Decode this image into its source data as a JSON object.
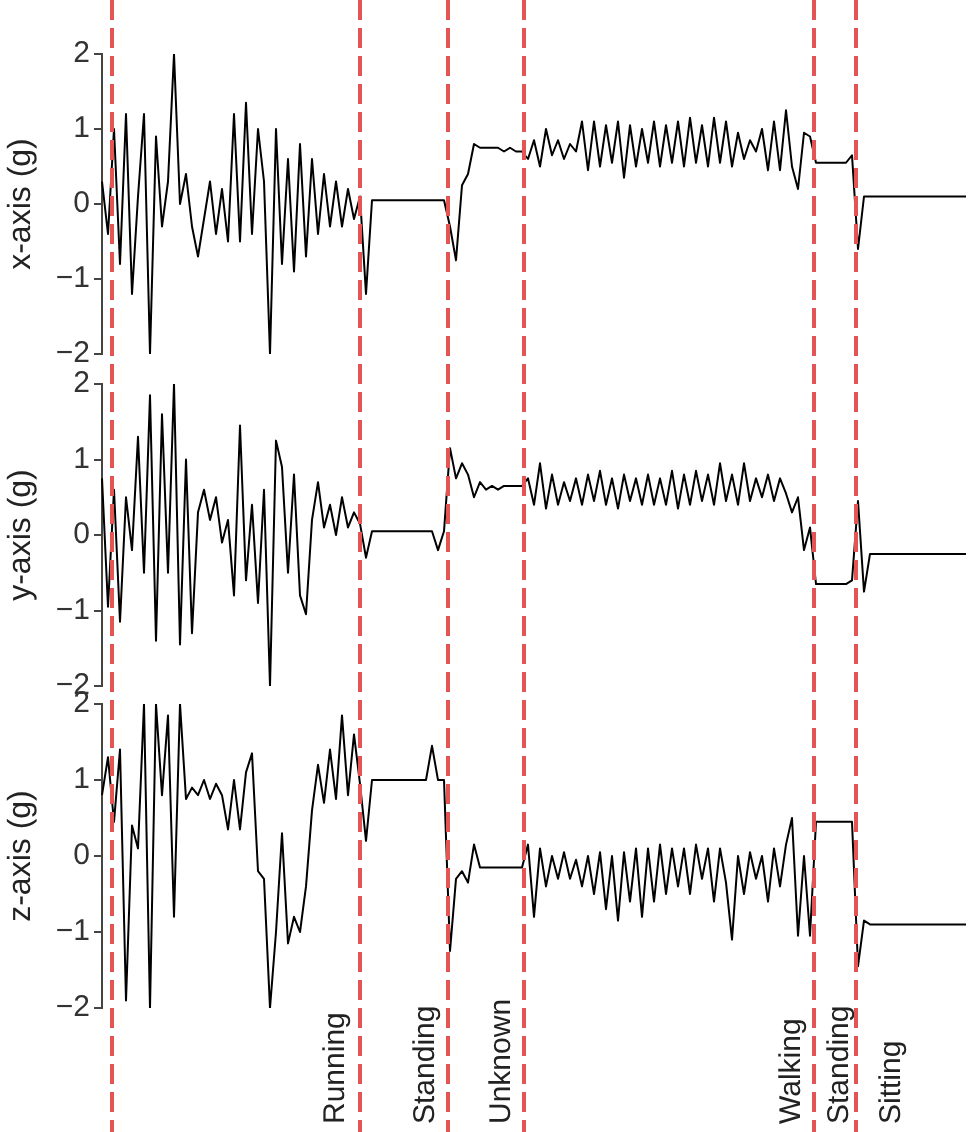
{
  "chart_data": [
    {
      "type": "line",
      "ylabel": "x-axis (g)",
      "tick_labels": "y",
      "grid": false,
      "legend": false,
      "marker": "none",
      "color": "#000000",
      "categories": [
        null,
        null,
        null,
        null,
        null,
        null,
        null,
        null,
        null,
        null,
        null,
        null,
        null,
        null,
        null,
        null,
        null,
        null,
        null,
        null,
        null,
        null,
        null,
        null,
        null,
        null,
        null,
        null,
        null,
        null,
        null,
        null,
        null,
        null,
        null,
        null,
        null,
        null,
        null,
        null,
        null,
        null,
        null,
        null,
        null,
        null,
        null,
        null,
        null,
        null,
        null,
        null,
        null,
        null,
        null,
        null,
        null,
        null,
        null,
        null,
        null,
        null,
        null,
        null,
        null,
        null,
        null,
        null,
        null,
        null,
        null,
        null,
        null,
        null,
        null,
        null,
        null,
        null,
        null,
        null,
        null,
        null,
        null,
        null,
        null,
        null,
        null,
        null,
        null,
        null,
        null,
        null,
        null,
        null,
        null,
        null,
        null,
        null,
        null,
        null,
        null,
        null,
        null,
        null,
        null,
        null,
        null,
        null,
        null,
        null,
        null,
        null,
        null,
        null,
        null,
        null,
        null,
        null,
        null,
        null,
        null,
        null,
        null,
        null,
        null,
        null,
        null,
        null,
        null,
        null,
        null,
        null,
        null,
        null,
        null,
        null,
        null,
        null,
        null,
        null,
        null,
        null,
        null,
        null,
        null
      ],
      "values": [
        0.3,
        -0.4,
        1.0,
        -0.8,
        1.2,
        -1.2,
        0.1,
        1.2,
        -2.0,
        0.9,
        -0.3,
        0.3,
        2.0,
        0.0,
        0.4,
        -0.3,
        -0.7,
        -0.2,
        0.3,
        -0.4,
        0.2,
        -0.5,
        1.2,
        -0.5,
        1.35,
        -0.4,
        1.0,
        0.3,
        -2.0,
        1.0,
        -0.8,
        0.6,
        -0.9,
        0.8,
        -0.7,
        0.6,
        -0.4,
        0.4,
        -0.3,
        0.3,
        -0.3,
        0.2,
        -0.2,
        0.1,
        -1.2,
        0.05,
        0.05,
        0.05,
        0.05,
        0.05,
        0.05,
        0.05,
        0.05,
        0.05,
        0.05,
        0.05,
        0.05,
        0.05,
        -0.3,
        -0.75,
        0.25,
        0.4,
        0.8,
        0.75,
        0.75,
        0.75,
        0.75,
        0.7,
        0.75,
        0.7,
        0.7,
        0.6,
        0.85,
        0.5,
        1.0,
        0.65,
        0.85,
        0.6,
        0.8,
        0.7,
        1.1,
        0.45,
        1.1,
        0.5,
        1.05,
        0.55,
        1.1,
        0.35,
        1.05,
        0.5,
        1.0,
        0.55,
        1.1,
        0.5,
        1.05,
        0.55,
        1.1,
        0.5,
        1.15,
        0.55,
        1.05,
        0.5,
        1.15,
        0.55,
        1.1,
        0.5,
        0.95,
        0.6,
        0.85,
        0.7,
        1.0,
        0.45,
        1.1,
        0.45,
        1.25,
        0.5,
        0.2,
        0.95,
        0.9,
        0.55,
        0.55,
        0.55,
        0.55,
        0.55,
        0.55,
        0.65,
        -0.6,
        0.1,
        0.1,
        0.1,
        0.1,
        0.1,
        0.1,
        0.1,
        0.1,
        0.1,
        0.1,
        0.1,
        0.1,
        0.1,
        0.1,
        0.1,
        0.1,
        0.1,
        0.1
      ],
      "ylim": [
        -2,
        2
      ],
      "yticks": [
        -2,
        -1,
        0,
        1,
        2
      ]
    },
    {
      "type": "line",
      "ylabel": "y-axis (g)",
      "tick_labels": "y",
      "grid": false,
      "legend": false,
      "marker": "none",
      "color": "#000000",
      "categories": [
        null,
        null,
        null,
        null,
        null,
        null,
        null,
        null,
        null,
        null,
        null,
        null,
        null,
        null,
        null,
        null,
        null,
        null,
        null,
        null,
        null,
        null,
        null,
        null,
        null,
        null,
        null,
        null,
        null,
        null,
        null,
        null,
        null,
        null,
        null,
        null,
        null,
        null,
        null,
        null,
        null,
        null,
        null,
        null,
        null,
        null,
        null,
        null,
        null,
        null,
        null,
        null,
        null,
        null,
        null,
        null,
        null,
        null,
        null,
        null,
        null,
        null,
        null,
        null,
        null,
        null,
        null,
        null,
        null,
        null,
        null,
        null,
        null,
        null,
        null,
        null,
        null,
        null,
        null,
        null,
        null,
        null,
        null,
        null,
        null,
        null,
        null,
        null,
        null,
        null,
        null,
        null,
        null,
        null,
        null,
        null,
        null,
        null,
        null,
        null,
        null,
        null,
        null,
        null,
        null,
        null,
        null,
        null,
        null,
        null,
        null,
        null,
        null,
        null,
        null,
        null,
        null,
        null,
        null,
        null,
        null,
        null,
        null,
        null,
        null,
        null,
        null,
        null,
        null,
        null,
        null,
        null,
        null,
        null,
        null,
        null,
        null,
        null,
        null,
        null,
        null,
        null,
        null,
        null,
        null
      ],
      "values": [
        0.75,
        -0.95,
        0.6,
        -1.15,
        0.5,
        -0.2,
        1.3,
        -0.5,
        1.85,
        -1.4,
        1.6,
        -0.5,
        2.0,
        -1.45,
        1.0,
        -1.3,
        0.3,
        0.6,
        0.2,
        0.5,
        -0.1,
        0.2,
        -0.8,
        1.45,
        -0.6,
        0.4,
        -0.9,
        0.6,
        -2.0,
        1.25,
        0.9,
        -0.5,
        0.8,
        -0.8,
        -1.05,
        0.2,
        0.7,
        0.1,
        0.4,
        0.0,
        0.5,
        0.1,
        0.3,
        0.15,
        -0.3,
        0.05,
        0.05,
        0.05,
        0.05,
        0.05,
        0.05,
        0.05,
        0.05,
        0.05,
        0.05,
        0.05,
        -0.2,
        0.05,
        1.15,
        0.75,
        0.95,
        0.8,
        0.5,
        0.7,
        0.6,
        0.65,
        0.6,
        0.65,
        0.65,
        0.65,
        0.65,
        0.75,
        0.4,
        0.95,
        0.35,
        0.8,
        0.4,
        0.7,
        0.45,
        0.75,
        0.4,
        0.8,
        0.45,
        0.85,
        0.4,
        0.75,
        0.35,
        0.8,
        0.45,
        0.75,
        0.4,
        0.8,
        0.4,
        0.75,
        0.4,
        0.85,
        0.35,
        0.8,
        0.4,
        0.85,
        0.45,
        0.8,
        0.4,
        0.95,
        0.45,
        0.8,
        0.4,
        0.95,
        0.45,
        0.75,
        0.5,
        0.8,
        0.45,
        0.75,
        0.55,
        0.3,
        0.5,
        -0.2,
        0.1,
        -0.65,
        -0.65,
        -0.65,
        -0.65,
        -0.65,
        -0.65,
        -0.6,
        0.45,
        -0.75,
        -0.25,
        -0.25,
        -0.25,
        -0.25,
        -0.25,
        -0.25,
        -0.25,
        -0.25,
        -0.25,
        -0.25,
        -0.25,
        -0.25,
        -0.25,
        -0.25,
        -0.25,
        -0.25,
        -0.25
      ],
      "ylim": [
        -2,
        2
      ],
      "yticks": [
        -2,
        -1,
        0,
        1,
        2
      ]
    },
    {
      "type": "line",
      "ylabel": "z-axis (g)",
      "tick_labels": "y",
      "grid": false,
      "legend": false,
      "marker": "none",
      "color": "#000000",
      "categories": [
        null,
        null,
        null,
        null,
        null,
        null,
        null,
        null,
        null,
        null,
        null,
        null,
        null,
        null,
        null,
        null,
        null,
        null,
        null,
        null,
        null,
        null,
        null,
        null,
        null,
        null,
        null,
        null,
        null,
        null,
        null,
        null,
        null,
        null,
        null,
        null,
        null,
        null,
        null,
        null,
        null,
        null,
        null,
        null,
        null,
        null,
        null,
        null,
        null,
        null,
        null,
        null,
        null,
        null,
        null,
        null,
        null,
        null,
        null,
        null,
        null,
        null,
        null,
        null,
        null,
        null,
        null,
        null,
        null,
        null,
        null,
        null,
        null,
        null,
        null,
        null,
        null,
        null,
        null,
        null,
        null,
        null,
        null,
        null,
        null,
        null,
        null,
        null,
        null,
        null,
        null,
        null,
        null,
        null,
        null,
        null,
        null,
        null,
        null,
        null,
        null,
        null,
        null,
        null,
        null,
        null,
        null,
        null,
        null,
        null,
        null,
        null,
        null,
        null,
        null,
        null,
        null,
        null,
        null,
        null,
        null,
        null,
        null,
        null,
        null,
        null,
        null,
        null,
        null,
        null,
        null,
        null,
        null,
        null,
        null,
        null,
        null,
        null,
        null,
        null,
        null,
        null,
        null,
        null,
        null
      ],
      "values": [
        0.8,
        1.3,
        0.45,
        1.4,
        -1.9,
        0.4,
        0.1,
        2.0,
        -2.0,
        2.0,
        0.8,
        1.85,
        -0.8,
        2.0,
        0.75,
        0.9,
        0.8,
        1.0,
        0.75,
        0.95,
        0.8,
        0.35,
        1.0,
        0.35,
        1.1,
        1.35,
        -0.2,
        -0.3,
        -2.0,
        -1.0,
        0.3,
        -1.15,
        -0.8,
        -1.0,
        -0.4,
        0.6,
        1.2,
        0.7,
        1.4,
        0.75,
        1.85,
        0.8,
        1.6,
        0.95,
        0.2,
        1.0,
        1.0,
        1.0,
        1.0,
        1.0,
        1.0,
        1.0,
        1.0,
        1.0,
        1.0,
        1.45,
        1.0,
        1.0,
        -1.25,
        -0.3,
        -0.2,
        -0.35,
        0.15,
        -0.15,
        -0.15,
        -0.15,
        -0.15,
        -0.15,
        -0.15,
        -0.15,
        -0.15,
        0.15,
        -0.8,
        0.1,
        -0.4,
        0.0,
        -0.3,
        0.05,
        -0.3,
        -0.05,
        -0.4,
        0.0,
        -0.5,
        0.05,
        -0.7,
        0.0,
        -0.85,
        0.05,
        -0.6,
        0.1,
        -0.8,
        0.1,
        -0.6,
        0.15,
        -0.5,
        0.1,
        -0.4,
        0.1,
        -0.5,
        0.15,
        -0.3,
        0.1,
        -0.6,
        0.1,
        -0.35,
        -1.1,
        0.0,
        -0.5,
        0.05,
        -0.3,
        0.0,
        -0.6,
        0.1,
        -0.4,
        0.15,
        0.5,
        -1.05,
        0.0,
        -1.05,
        0.45,
        0.45,
        0.45,
        0.45,
        0.45,
        0.45,
        0.45,
        -1.45,
        -0.85,
        -0.9,
        -0.9,
        -0.9,
        -0.9,
        -0.9,
        -0.9,
        -0.9,
        -0.9,
        -0.9,
        -0.9,
        -0.9,
        -0.9,
        -0.9,
        -0.9,
        -0.9,
        -0.9,
        -0.9
      ],
      "ylim": [
        -2,
        2
      ],
      "yticks": [
        -2,
        -1,
        0,
        1,
        2
      ],
      "annotations": [
        "Running",
        "Standing",
        "Unknown",
        "Walking",
        "Standing",
        "Sitting"
      ]
    }
  ]
}
